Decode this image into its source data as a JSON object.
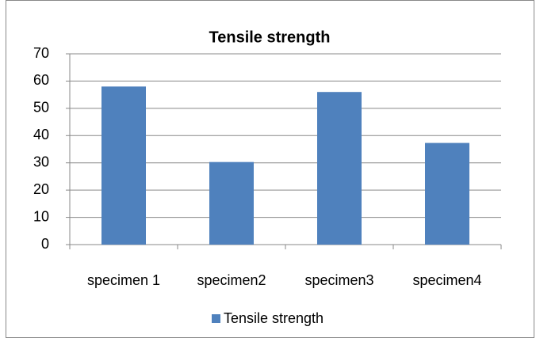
{
  "chart_data": {
    "type": "bar",
    "title": "Tensile strength",
    "categories": [
      "specimen 1",
      "specimen2",
      "specimen3",
      "specimen4"
    ],
    "series": [
      {
        "name": "Tensile strength",
        "color": "#4f81bd",
        "values": [
          58,
          30.3,
          56,
          37.3
        ]
      }
    ],
    "ylim": [
      0,
      70
    ],
    "yticks": [
      0,
      10,
      20,
      30,
      40,
      50,
      60,
      70
    ],
    "grid": true,
    "legend": "bottom"
  }
}
